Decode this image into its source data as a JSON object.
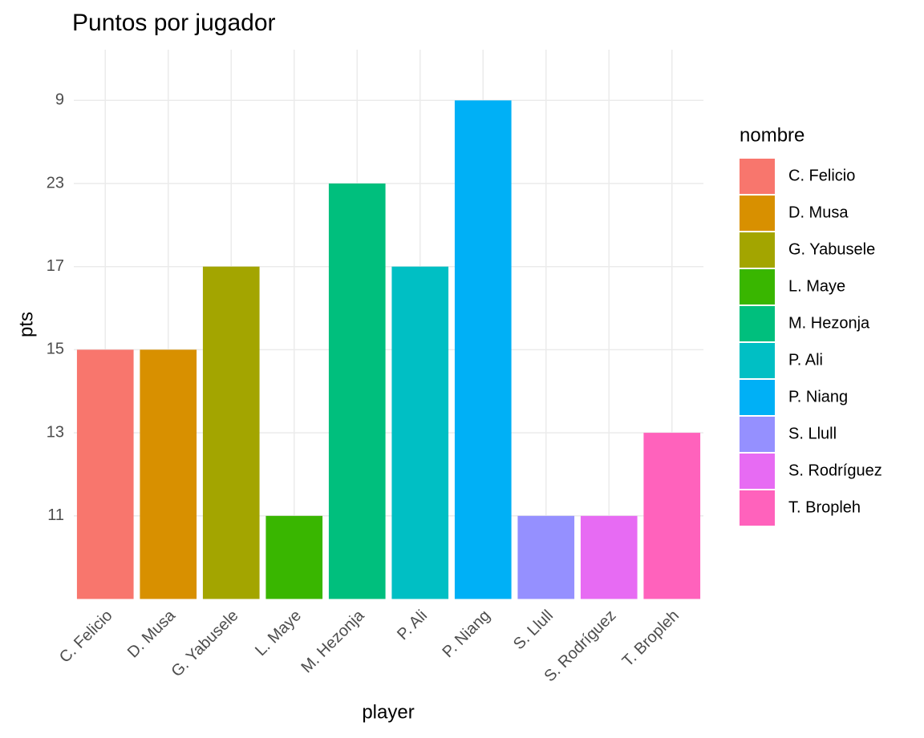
{
  "chart_data": {
    "type": "bar",
    "title": "Puntos por jugador",
    "x_label": "player",
    "y_label": "pts",
    "legend_title": "nombre",
    "categories": [
      "C. Felicio",
      "D. Musa",
      "G. Yabusele",
      "L. Maye",
      "M. Hezonja",
      "P. Ali",
      "P. Niang",
      "S. Llull",
      "S. Rodríguez",
      "T. Bropleh"
    ],
    "values": [
      15,
      15,
      17,
      11,
      23,
      17,
      9,
      11,
      11,
      13
    ],
    "colors": [
      "#F8766D",
      "#D89000",
      "#A3A500",
      "#39B600",
      "#00BF7D",
      "#00BFC4",
      "#00B0F6",
      "#9590FF",
      "#E76BF3",
      "#FF62BC"
    ],
    "y_discrete": true,
    "yticks": [
      11,
      13,
      15,
      17,
      23,
      9
    ],
    "grid": true
  }
}
